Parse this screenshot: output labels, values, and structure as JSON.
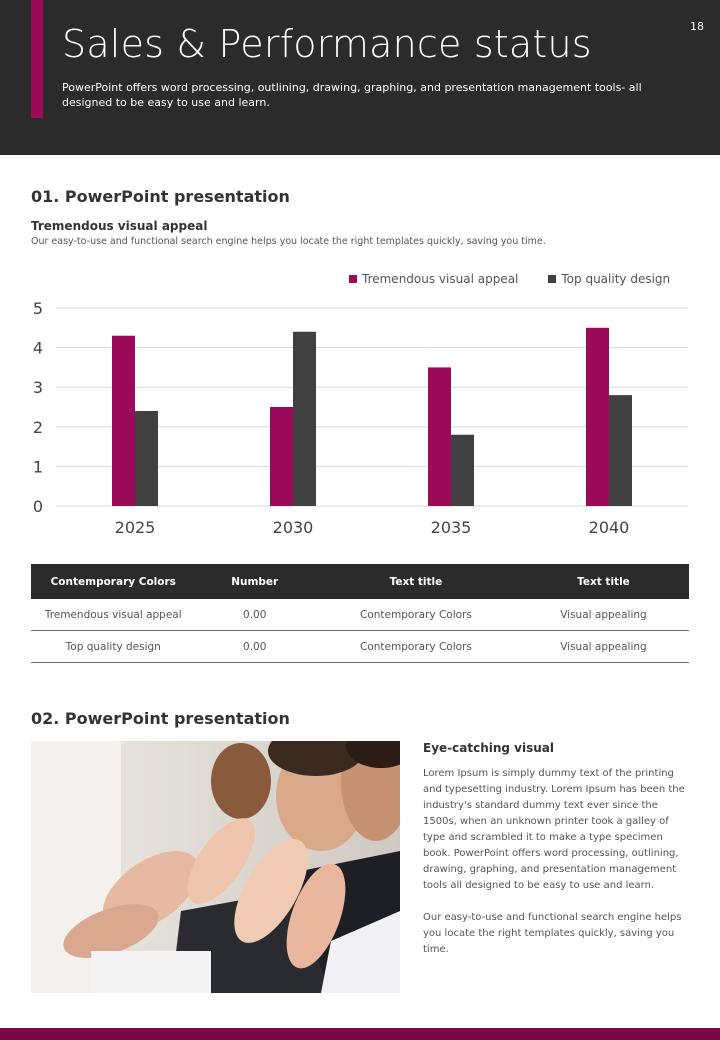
{
  "header": {
    "page_number": "18",
    "title": "Sales & Performance status",
    "subtitle": "PowerPoint offers word processing, outlining, drawing, graphing, and presentation management tools- all designed to be easy to use and learn."
  },
  "section1": {
    "heading": "01. PowerPoint presentation",
    "subheading": "Tremendous visual appeal",
    "description": "Our easy-to-use and functional search engine helps you locate the right templates quickly, saving you time."
  },
  "chart_data": {
    "type": "bar",
    "categories": [
      "2025",
      "2030",
      "2035",
      "2040"
    ],
    "series": [
      {
        "name": "Tremendous visual appeal",
        "values": [
          4.3,
          2.5,
          3.5,
          4.5
        ],
        "color": "#9c0a5a"
      },
      {
        "name": "Top quality design",
        "values": [
          2.4,
          4.4,
          1.8,
          2.8
        ],
        "color": "#404040"
      }
    ],
    "ylim": [
      0,
      5
    ],
    "yticks": [
      "0",
      "1",
      "2",
      "3",
      "4",
      "5"
    ],
    "grid": true,
    "legend": "top-right"
  },
  "table": {
    "headers": [
      "Contemporary Colors",
      "Number",
      "Text title",
      "Text title"
    ],
    "rows": [
      [
        "Tremendous visual appeal",
        "0.00",
        "Contemporary Colors",
        "Visual appealing"
      ],
      [
        "Top quality design",
        "0.00",
        "Contemporary Colors",
        "Visual appealing"
      ]
    ]
  },
  "section2": {
    "heading": "02. PowerPoint presentation",
    "side_title": "Eye-catching visual",
    "paragraph1": "Lorem Ipsum is simply dummy text of the printing and typesetting industry. Lorem Ipsum has been the industry's standard dummy text ever since the 1500s, when an unknown printer took a galley of type and scrambled it to make a type specimen book. PowerPoint offers word processing, outlining, drawing, graphing, and presentation management tools all designed to be easy to use and learn.",
    "paragraph2": "Our easy-to-use and functional search engine helps you locate the right templates quickly, saving you time."
  },
  "colors": {
    "accent": "#9c0a5a",
    "dark": "#2b2b2b",
    "footer": "#7a0a45"
  }
}
